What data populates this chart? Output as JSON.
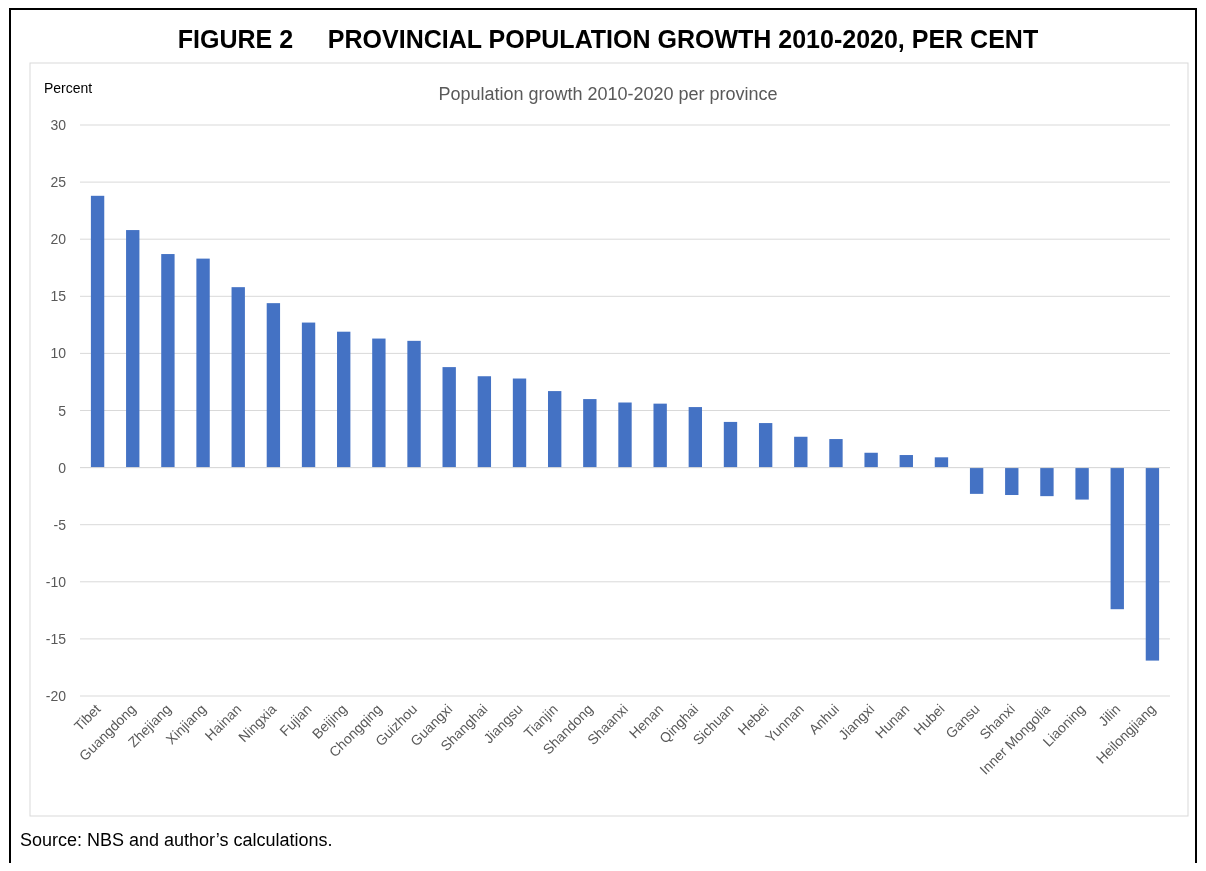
{
  "chart_data": {
    "type": "bar",
    "title": "FIGURE 2     PROVINCIAL POPULATION GROWTH 2010-2020, PER CENT",
    "subtitle": "Population growth 2010-2020 per province",
    "ylabel": "Percent",
    "categories": [
      "Tibet",
      "Guangdong",
      "Zhejiang",
      "Xinjiang",
      "Hainan",
      "Ningxia",
      "Fujian",
      "Beijing",
      "Chongqing",
      "Guizhou",
      "Guangxi",
      "Shanghai",
      "Jiangsu",
      "Tianjin",
      "Shandong",
      "Shaanxi",
      "Henan",
      "Qinghai",
      "Sichuan",
      "Hebei",
      "Yunnan",
      "Anhui",
      "Jiangxi",
      "Hunan",
      "Hubei",
      "Gansu",
      "Shanxi",
      "Inner Mongolia",
      "Liaoning",
      "Jilin",
      "Heilongjiang"
    ],
    "values": [
      23.8,
      20.8,
      18.7,
      18.3,
      15.8,
      14.4,
      12.7,
      11.9,
      11.3,
      11.1,
      8.8,
      8.0,
      7.8,
      6.7,
      6.0,
      5.7,
      5.6,
      5.3,
      4.0,
      3.9,
      2.7,
      2.5,
      1.3,
      1.1,
      0.9,
      -2.3,
      -2.4,
      -2.5,
      -2.8,
      -12.4,
      -16.9
    ],
    "color": "#4472c4",
    "ylim": [
      -20,
      30
    ],
    "yticks": [
      -20,
      -15,
      -10,
      -5,
      0,
      5,
      10,
      15,
      20,
      25,
      30
    ],
    "grid": "y",
    "annotations": [
      "Source: NBS and author’s calculations."
    ]
  }
}
